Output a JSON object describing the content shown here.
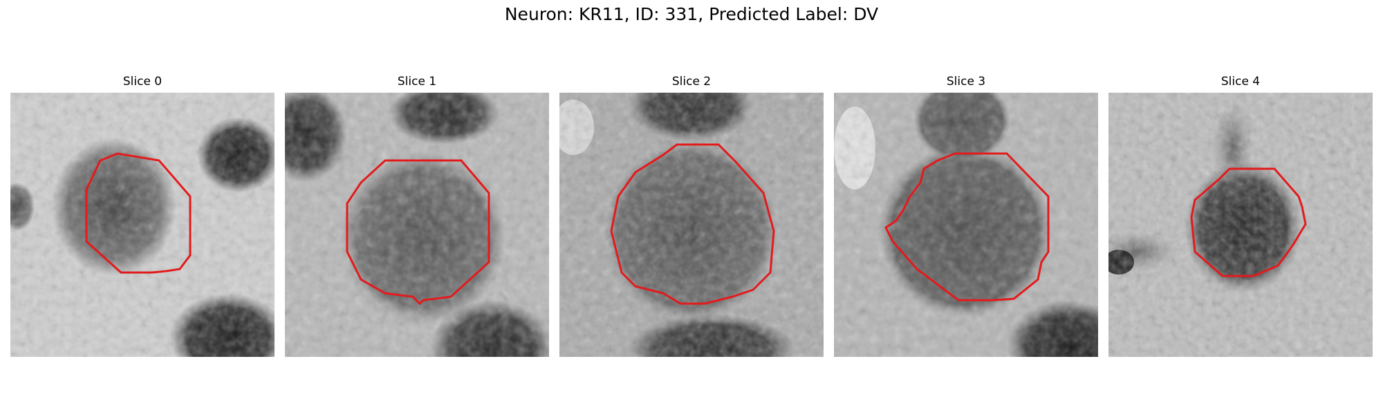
{
  "figure": {
    "title": "Neuron: KR11, ID: 331, Predicted Label: DV"
  },
  "panels": [
    {
      "label": "Slice 0"
    },
    {
      "label": "Slice 1"
    },
    {
      "label": "Slice 2"
    },
    {
      "label": "Slice 3"
    },
    {
      "label": "Slice 4"
    }
  ],
  "colors": {
    "contour": "#e31a1c",
    "background": "#ffffff"
  }
}
